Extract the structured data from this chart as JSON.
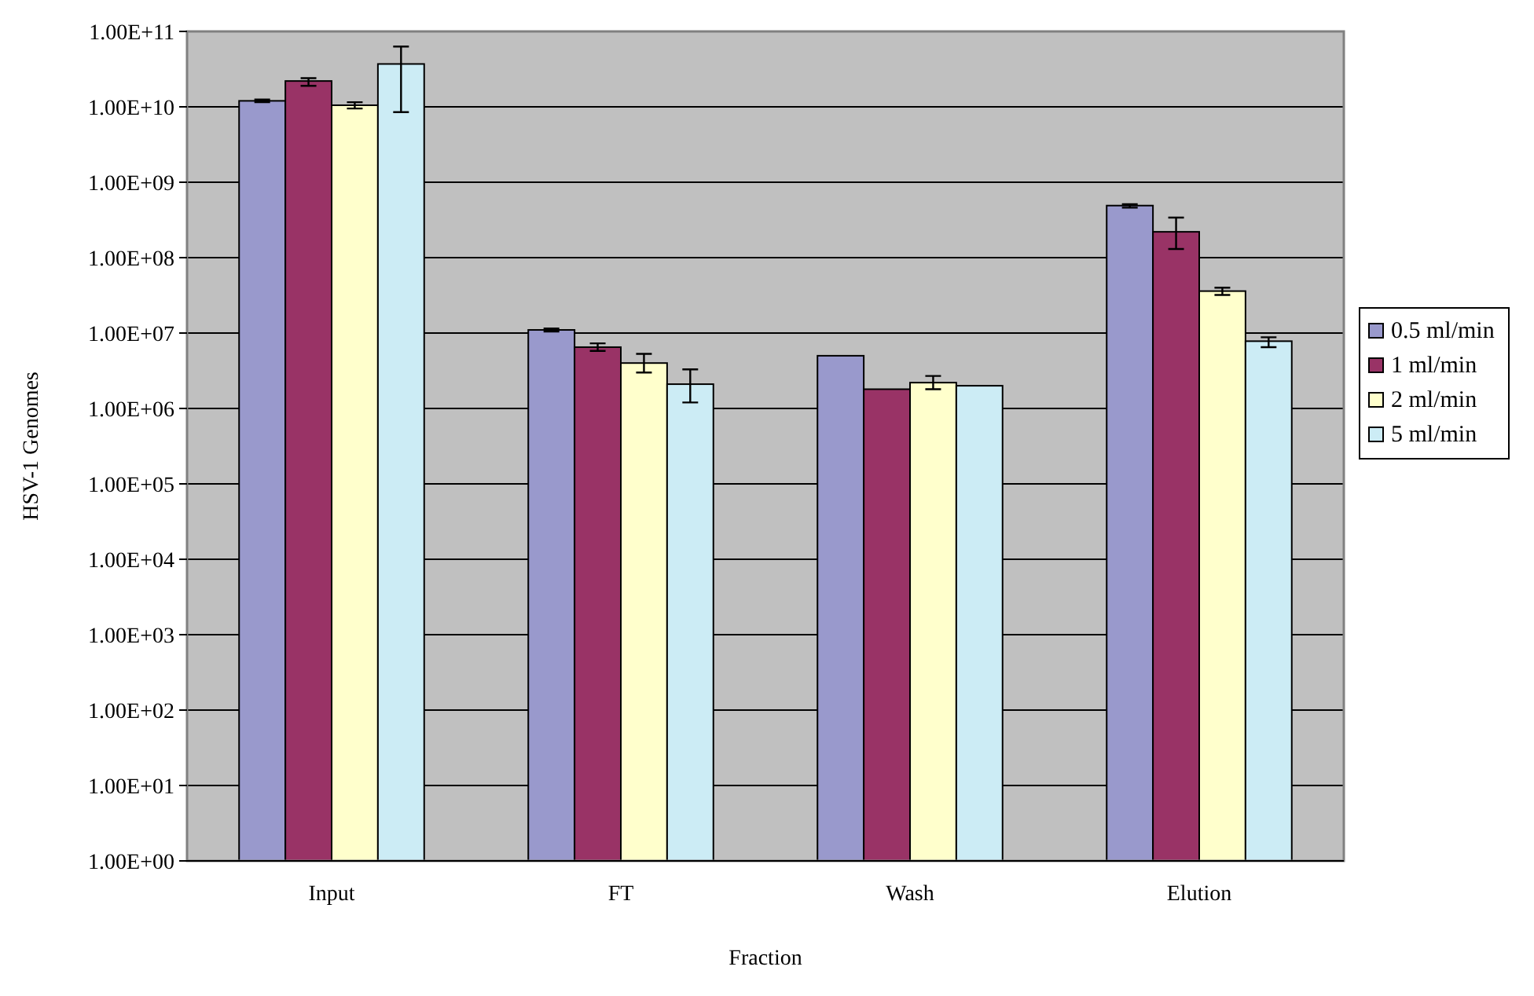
{
  "chart_data": {
    "type": "bar",
    "xlabel": "Fraction",
    "ylabel": "HSV-1 Genomes",
    "categories": [
      "Input",
      "FT",
      "Wash",
      "Elution"
    ],
    "log": true,
    "grid": "y",
    "legend": "right",
    "ylim": [
      1,
      100000000000
    ],
    "yticks": [
      {
        "value": 1,
        "label": "1.00E+00"
      },
      {
        "value": 10,
        "label": "1.00E+01"
      },
      {
        "value": 100,
        "label": "1.00E+02"
      },
      {
        "value": 1000,
        "label": "1.00E+03"
      },
      {
        "value": 10000,
        "label": "1.00E+04"
      },
      {
        "value": 100000,
        "label": "1.00E+05"
      },
      {
        "value": 1000000,
        "label": "1.00E+06"
      },
      {
        "value": 10000000,
        "label": "1.00E+07"
      },
      {
        "value": 100000000,
        "label": "1.00E+08"
      },
      {
        "value": 1000000000,
        "label": "1.00E+09"
      },
      {
        "value": 10000000000,
        "label": "1.00E+10"
      },
      {
        "value": 100000000000,
        "label": "1.00E+11"
      }
    ],
    "series": [
      {
        "name": "0.5 ml/min",
        "color": "#9999cc",
        "values": [
          12000000000,
          11000000,
          5000000,
          490000000
        ],
        "errors": [
          [
            11500000000,
            12500000000
          ],
          [
            10500000,
            11500000
          ],
          null,
          [
            460000000,
            510000000
          ]
        ]
      },
      {
        "name": "1 ml/min",
        "color": "#993366",
        "values": [
          22000000000,
          6500000,
          1800000,
          220000000
        ],
        "errors": [
          [
            19000000000,
            24000000000
          ],
          [
            5800000,
            7300000
          ],
          null,
          [
            130000000,
            340000000
          ]
        ]
      },
      {
        "name": "2 ml/min",
        "color": "#ffffcc",
        "values": [
          10500000000,
          4000000,
          2200000,
          36000000
        ],
        "errors": [
          [
            9500000000,
            11500000000
          ],
          [
            3000000,
            5300000
          ],
          [
            1800000,
            2700000
          ],
          [
            32000000,
            40000000
          ]
        ]
      },
      {
        "name": "5 ml/min",
        "color": "#ccecf5",
        "values": [
          37000000000,
          2100000,
          2000000,
          7800000
        ],
        "errors": [
          [
            8500000000,
            63000000000
          ],
          [
            1200000,
            3300000
          ],
          null,
          [
            6500000,
            8800000
          ]
        ]
      }
    ]
  }
}
